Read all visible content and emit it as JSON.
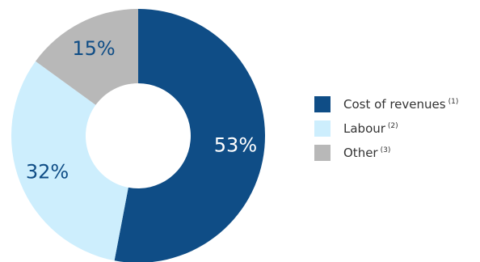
{
  "chart_data": {
    "type": "pie",
    "donut": true,
    "title": "",
    "legend_position": "right",
    "slices": [
      {
        "name": "Cost of revenues",
        "note": "(1)",
        "value": 53,
        "label": "53%",
        "color": "#0f4d86",
        "label_color": "#ffffff"
      },
      {
        "name": "Labour",
        "note": "(2)",
        "value": 32,
        "label": "32%",
        "color": "#cdeefd",
        "label_color": "#0f4d86"
      },
      {
        "name": "Other",
        "note": "(3)",
        "value": 15,
        "label": "15%",
        "color": "#b8b8b8",
        "label_color": "#0f4d86"
      }
    ]
  }
}
